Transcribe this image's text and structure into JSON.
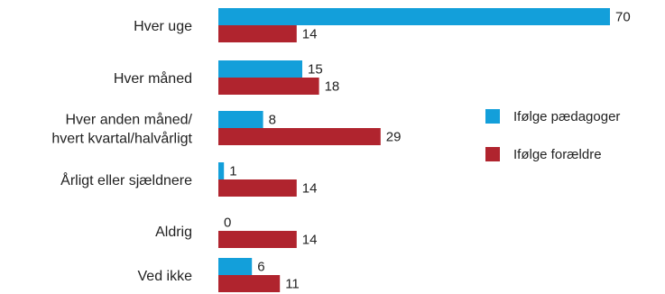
{
  "chart_data": {
    "type": "bar",
    "orientation": "horizontal",
    "categories": [
      [
        "Hver uge"
      ],
      [
        "Hver måned"
      ],
      [
        "Hver anden måned/",
        "hvert kvartal/halvårligt"
      ],
      [
        "Årligt eller sjældnere"
      ],
      [
        "Aldrig"
      ],
      [
        "Ved ikke"
      ]
    ],
    "series": [
      {
        "name": "Ifølge pædagoger",
        "color": "#139fda",
        "values": [
          70,
          15,
          8,
          1,
          0,
          6
        ]
      },
      {
        "name": "Ifølge forældre",
        "color": "#b0242e",
        "values": [
          14,
          18,
          29,
          14,
          14,
          11
        ]
      }
    ],
    "xlim": [
      0,
      70
    ],
    "grid": false,
    "legend_position": "right",
    "data_labels": true,
    "title": "",
    "xlabel": "",
    "ylabel": ""
  }
}
